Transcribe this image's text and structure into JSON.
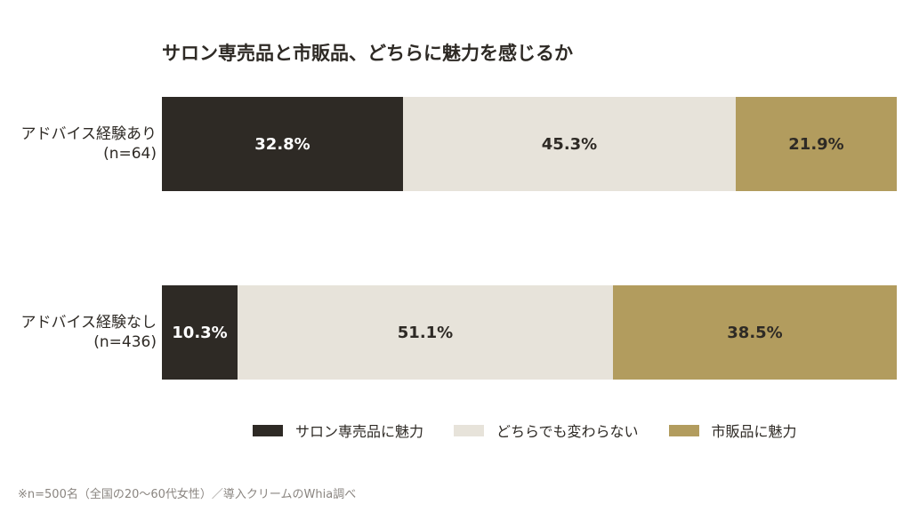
{
  "chart_data": {
    "type": "bar",
    "orientation": "horizontal",
    "stacked": true,
    "title": "サロン専売品と市販品、どちらに魅力を感じるか",
    "categories": [
      {
        "label": "アドバイス経験あり",
        "sublabel": "(n=64)"
      },
      {
        "label": "アドバイス経験なし",
        "sublabel": "(n=436)"
      }
    ],
    "series": [
      {
        "name": "サロン専売品に魅力",
        "color": "#2e2a25",
        "text_color": "#ffffff",
        "values": [
          32.8,
          10.3
        ],
        "labels": [
          "32.8%",
          "10.3%"
        ]
      },
      {
        "name": "どちらでも変わらない",
        "color": "#e7e3da",
        "text_color": "#2e2a25",
        "values": [
          45.3,
          51.1
        ],
        "labels": [
          "45.3%",
          "51.1%"
        ]
      },
      {
        "name": "市販品に魅力",
        "color": "#b29c5e",
        "text_color": "#2e2a25",
        "values": [
          21.9,
          38.5
        ],
        "labels": [
          "21.9%",
          "38.5%"
        ]
      }
    ],
    "xlim": [
      0,
      100
    ],
    "grid": false,
    "legend_position": "bottom"
  },
  "footnote": "※n=500名（全国の20〜60代女性）／導入クリームのWhia調べ"
}
